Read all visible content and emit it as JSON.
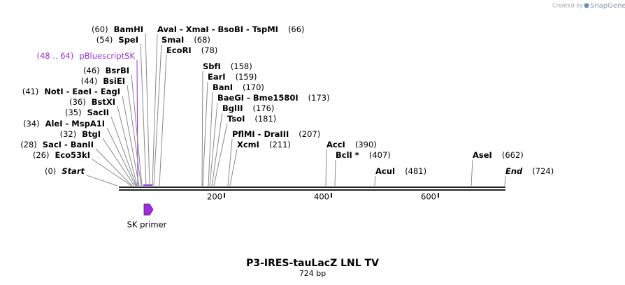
{
  "credit": {
    "prefix": "Created by",
    "brand": "SnapGene"
  },
  "title": "P3-IRES-tauLacZ LNL TV",
  "length": "724 bp",
  "feature": {
    "label": "SK primer"
  },
  "ruler": [
    "200",
    "400",
    "600"
  ],
  "left_sites": [
    {
      "position": "(60)",
      "name": "BamHI"
    },
    {
      "position": "(54)",
      "name": "SpeI"
    },
    {
      "position": "(48 .. 64)",
      "name": "pBluescriptSK"
    },
    {
      "position": "(46)",
      "name": "BsrBI"
    },
    {
      "position": "(44)",
      "name": "BsiEI"
    },
    {
      "position": "(41)",
      "name": "NotI - EaeI - EagI"
    },
    {
      "position": "(36)",
      "name": "BstXI"
    },
    {
      "position": "(35)",
      "name": "SacII"
    },
    {
      "position": "(34)",
      "name": "AleI - MspA1I"
    },
    {
      "position": "(32)",
      "name": "BtgI"
    },
    {
      "position": "(28)",
      "name": "SacI - BanII"
    },
    {
      "position": "(26)",
      "name": "Eco53kI"
    },
    {
      "position": "(0)",
      "name": "Start"
    }
  ],
  "right_sites": [
    {
      "name": "AvaI - XmaI - BsoBI - TspMI",
      "position": "(66)"
    },
    {
      "name": "SmaI",
      "position": "(68)"
    },
    {
      "name": "EcoRI",
      "position": "(78)"
    },
    {
      "name": "SbfI",
      "position": "(158)"
    },
    {
      "name": "EarI",
      "position": "(159)"
    },
    {
      "name": "BanI",
      "position": "(170)"
    },
    {
      "name": "BaeGI - Bme1580I",
      "position": "(173)"
    },
    {
      "name": "BglII",
      "position": "(176)"
    },
    {
      "name": "TsoI",
      "position": "(181)"
    },
    {
      "name": "PflMI - DraIII",
      "position": "(207)"
    },
    {
      "name": "XcmI",
      "position": "(211)"
    },
    {
      "name": "AccI",
      "position": "(390)"
    },
    {
      "name": "BclI *",
      "position": "(407)"
    },
    {
      "name": "AcuI",
      "position": "(481)"
    },
    {
      "name": "AseI",
      "position": "(662)"
    },
    {
      "name": "End",
      "position": "(724)"
    }
  ]
}
